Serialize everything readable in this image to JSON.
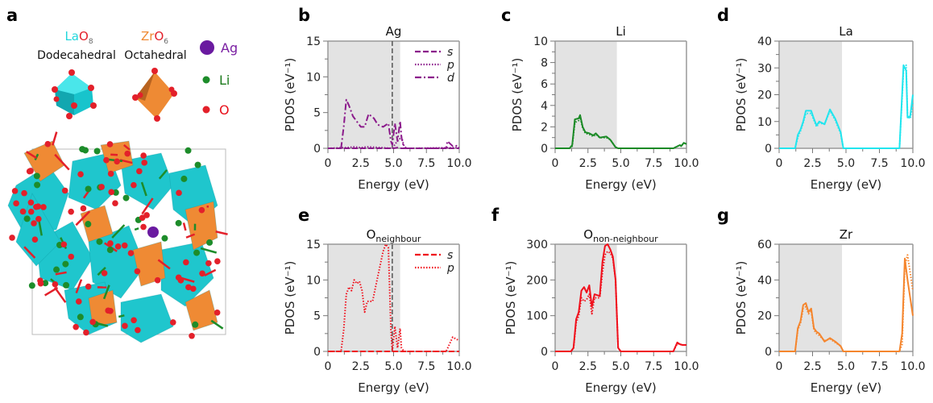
{
  "panel_a": {
    "label": "a",
    "lao8": {
      "element": "La",
      "oxygen": "O",
      "count": "8",
      "shape": "Dodecahedral"
    },
    "zro6": {
      "element": "Zr",
      "oxygen": "O",
      "count": "6",
      "shape": "Octahedral"
    },
    "legend": [
      {
        "label": "Ag",
        "color": "#7a1fa2"
      },
      {
        "label": "Li",
        "color": "#1b7a1b"
      },
      {
        "label": "O",
        "color": "#e8101a"
      }
    ],
    "colors": {
      "la": "#21d7dc",
      "zr": "#ef8a34",
      "li": "#1d8c2a",
      "o": "#e3202a",
      "ag": "#6a1aa0"
    }
  },
  "chart_data": [
    {
      "panel": "b",
      "type": "line",
      "title": "Ag",
      "title_sub": "",
      "xlabel": "Energy (eV)",
      "ylabel": "PDOS (eV⁻¹)",
      "xlim": [
        0,
        10
      ],
      "ylim": [
        0,
        15
      ],
      "xticks": [
        "0",
        "2.5",
        "5.0",
        "7.5",
        "10.0"
      ],
      "yticks": [
        "0",
        "5",
        "10",
        "15"
      ],
      "shade_end": 5.5,
      "marker_line": 4.9,
      "color": "#8b1a8b",
      "legend": [
        {
          "label": "s",
          "style": "dashed"
        },
        {
          "label": "p",
          "style": "dotted"
        },
        {
          "label": "d",
          "style": "dashdot"
        }
      ],
      "series": [
        {
          "name": "s",
          "style": "dashed",
          "x": [
            0,
            5,
            5.3,
            5.6,
            10
          ],
          "y": [
            0,
            0,
            0.1,
            0,
            0
          ]
        },
        {
          "name": "p",
          "style": "dotted",
          "x": [
            0,
            1.5,
            2,
            2.5,
            3,
            4,
            4.9,
            5.2,
            5.6,
            5.8,
            6,
            10
          ],
          "y": [
            0,
            0.1,
            0.2,
            0.1,
            0.2,
            0.1,
            0,
            0.8,
            1.6,
            0.3,
            0,
            0.1
          ]
        },
        {
          "name": "d",
          "style": "dashdot",
          "x": [
            0,
            1,
            1.2,
            1.4,
            1.6,
            1.9,
            2.5,
            2.8,
            3.1,
            3.5,
            3.8,
            4.2,
            4.6,
            4.8,
            4.9,
            5.1,
            5.3,
            5.5,
            5.6,
            5.8,
            6,
            9,
            9.1,
            9.5,
            10
          ],
          "y": [
            0,
            0,
            3,
            6.8,
            6,
            4.5,
            3,
            3,
            4.8,
            4.2,
            3.3,
            3,
            3.5,
            1,
            0.5,
            3.5,
            1,
            3.8,
            1.5,
            0,
            0,
            0,
            1,
            0.3,
            0.4
          ]
        }
      ]
    },
    {
      "panel": "c",
      "type": "line",
      "title": "Li",
      "title_sub": "",
      "xlabel": "Energy (eV)",
      "ylabel": "PDOS (eV⁻¹)",
      "xlim": [
        0,
        10
      ],
      "ylim": [
        0,
        10
      ],
      "xticks": [
        "0",
        "2.5",
        "5.0",
        "7.5",
        "10.0"
      ],
      "yticks": [
        "0",
        "2",
        "4",
        "6",
        "8",
        "10"
      ],
      "shade_end": 4.7,
      "marker_line": null,
      "color": "#1b8a26",
      "legend": [],
      "series": [
        {
          "name": "total",
          "style": "solid",
          "x": [
            0,
            1.1,
            1.3,
            1.5,
            1.8,
            1.9,
            2.1,
            2.3,
            2.6,
            2.9,
            3.1,
            3.4,
            3.9,
            4.2,
            4.6,
            4.8,
            9,
            9.5,
            9.6,
            9.8,
            10
          ],
          "y": [
            0,
            0,
            0.3,
            2.7,
            2.8,
            3.1,
            2,
            1.5,
            1.4,
            1.2,
            1.4,
            1,
            1.1,
            0.8,
            0.1,
            0,
            0,
            0.3,
            0.2,
            0.5,
            0.4
          ]
        },
        {
          "name": "dotted",
          "style": "dotted",
          "x": [
            0,
            1.1,
            1.3,
            1.5,
            1.8,
            1.9,
            2.1,
            2.3,
            2.6,
            2.9,
            3.1,
            3.4,
            3.9,
            4.2,
            4.6,
            4.8,
            9,
            9.5,
            9.6,
            9.8,
            10
          ],
          "y": [
            0,
            0,
            0.2,
            2.4,
            2.6,
            2.9,
            1.9,
            1.4,
            1.3,
            1.1,
            1.3,
            1,
            1,
            0.8,
            0.1,
            0,
            0,
            0.3,
            0.2,
            0.5,
            0.4
          ]
        }
      ]
    },
    {
      "panel": "d",
      "type": "line",
      "title": "La",
      "title_sub": "",
      "xlabel": "Energy (eV)",
      "ylabel": "PDOS (eV⁻¹)",
      "xlim": [
        0,
        10
      ],
      "ylim": [
        0,
        40
      ],
      "xticks": [
        "0",
        "2.5",
        "5.0",
        "7.5",
        "10.0"
      ],
      "yticks": [
        "0",
        "10",
        "20",
        "30",
        "40"
      ],
      "shade_end": 4.7,
      "marker_line": null,
      "color": "#22e5ee",
      "legend": [],
      "series": [
        {
          "name": "total",
          "style": "solid",
          "x": [
            0,
            1.2,
            1.4,
            1.6,
            1.8,
            2,
            2.4,
            2.6,
            2.8,
            3,
            3.4,
            3.8,
            4.2,
            4.6,
            4.8,
            9,
            9.3,
            9.5,
            9.6,
            9.8,
            10
          ],
          "y": [
            0,
            0,
            5,
            7,
            10,
            14,
            14,
            11,
            8.5,
            10,
            9,
            14.5,
            11,
            6,
            0,
            0,
            31,
            29,
            11.5,
            12,
            20
          ]
        },
        {
          "name": "dotted",
          "style": "dotted",
          "x": [
            0,
            1.2,
            1.4,
            1.6,
            1.8,
            2,
            2.4,
            2.6,
            2.8,
            3,
            3.4,
            3.8,
            4.2,
            4.6,
            4.8,
            9,
            9.3,
            9.5,
            9.6,
            9.8,
            10
          ],
          "y": [
            0,
            0,
            4,
            6.5,
            9.5,
            13,
            13,
            10.5,
            8,
            9.5,
            9,
            14,
            10.5,
            5.5,
            0,
            0,
            29,
            31,
            12,
            11,
            17
          ]
        }
      ]
    },
    {
      "panel": "e",
      "type": "line",
      "title": "O",
      "title_sub": "neighbour",
      "xlabel": "Energy (eV)",
      "ylabel": "PDOS (eV⁻¹)",
      "xlim": [
        0,
        10
      ],
      "ylim": [
        0,
        15
      ],
      "xticks": [
        "0",
        "2.5",
        "5.0",
        "7.5",
        "10.0"
      ],
      "yticks": [
        "0",
        "5",
        "10",
        "15"
      ],
      "shade_end": 5.5,
      "marker_line": 4.9,
      "color": "#f0101c",
      "legend": [
        {
          "label": "s",
          "style": "dashed"
        },
        {
          "label": "p",
          "style": "dotted"
        }
      ],
      "series": [
        {
          "name": "s",
          "style": "dashed",
          "x": [
            0,
            10
          ],
          "y": [
            0,
            0
          ]
        },
        {
          "name": "p",
          "style": "dotted",
          "x": [
            0,
            1,
            1.2,
            1.4,
            1.6,
            1.8,
            2,
            2.2,
            2.4,
            2.6,
            2.8,
            3,
            3.4,
            3.8,
            4.2,
            4.4,
            4.6,
            4.8,
            4.9,
            5.1,
            5.3,
            5.5,
            5.6,
            5.8,
            6,
            9,
            9.5,
            10
          ],
          "y": [
            0,
            0,
            3,
            8,
            9,
            8.5,
            10,
            9.5,
            9.8,
            8.5,
            5.5,
            7,
            7,
            10.5,
            14,
            15,
            14.5,
            3,
            0,
            3.5,
            0.5,
            3.2,
            0.5,
            0,
            0,
            0,
            2,
            1.5
          ]
        }
      ]
    },
    {
      "panel": "f",
      "type": "line",
      "title": "O",
      "title_sub": "non-neighbour",
      "xlabel": "Energy (eV)",
      "ylabel": "PDOS (eV⁻¹)",
      "xlim": [
        0,
        10
      ],
      "ylim": [
        0,
        300
      ],
      "xticks": [
        "0",
        "2.5",
        "5.0",
        "7.5",
        "10.0"
      ],
      "yticks": [
        "0",
        "100",
        "200",
        "300"
      ],
      "shade_end": 4.7,
      "marker_line": null,
      "color": "#f0101c",
      "legend": [],
      "series": [
        {
          "name": "total",
          "style": "solid",
          "x": [
            0,
            1.2,
            1.4,
            1.6,
            1.8,
            2,
            2.2,
            2.4,
            2.6,
            2.8,
            3,
            3.4,
            3.6,
            3.8,
            4,
            4.2,
            4.4,
            4.6,
            4.8,
            5,
            9,
            9.3,
            9.5,
            9.7,
            10
          ],
          "y": [
            0,
            0,
            10,
            90,
            110,
            170,
            180,
            165,
            185,
            125,
            160,
            155,
            250,
            295,
            300,
            285,
            265,
            200,
            10,
            0,
            0,
            25,
            20,
            18,
            18
          ]
        },
        {
          "name": "dotted",
          "style": "dotted",
          "x": [
            0,
            1.2,
            1.4,
            1.6,
            1.8,
            2,
            2.2,
            2.4,
            2.6,
            2.8,
            3,
            3.4,
            3.6,
            3.8,
            4,
            4.2,
            4.4,
            4.6,
            4.8,
            5,
            9,
            9.3,
            9.5,
            9.7,
            10
          ],
          "y": [
            0,
            0,
            8,
            80,
            100,
            150,
            140,
            145,
            160,
            105,
            150,
            150,
            220,
            270,
            280,
            275,
            260,
            200,
            10,
            0,
            0,
            22,
            20,
            18,
            18
          ]
        }
      ]
    },
    {
      "panel": "g",
      "type": "line",
      "title": "Zr",
      "title_sub": "",
      "xlabel": "Energy (eV)",
      "ylabel": "PDOS (eV⁻¹)",
      "xlim": [
        0,
        10
      ],
      "ylim": [
        0,
        60
      ],
      "xticks": [
        "0",
        "2.5",
        "5.0",
        "7.5",
        "10.0"
      ],
      "yticks": [
        "0",
        "20",
        "40",
        "60"
      ],
      "shade_end": 4.7,
      "marker_line": null,
      "color": "#f5862e",
      "legend": [],
      "series": [
        {
          "name": "total",
          "style": "solid",
          "x": [
            0,
            1.2,
            1.4,
            1.6,
            1.8,
            2,
            2.2,
            2.4,
            2.6,
            2.8,
            3,
            3.4,
            3.8,
            4.2,
            4.6,
            4.8,
            9,
            9.2,
            9.4,
            9.6,
            10
          ],
          "y": [
            0,
            0,
            13,
            17,
            26,
            27,
            22,
            24,
            13,
            11,
            10,
            5.5,
            7.5,
            5.5,
            3,
            0,
            0,
            10,
            52,
            40,
            20
          ]
        },
        {
          "name": "dotted",
          "style": "dotted",
          "x": [
            0,
            1.2,
            1.4,
            1.6,
            1.8,
            2,
            2.2,
            2.4,
            2.6,
            2.8,
            3,
            3.4,
            3.8,
            4.2,
            4.6,
            4.8,
            9,
            9.2,
            9.4,
            9.6,
            10
          ],
          "y": [
            0,
            0,
            12,
            16,
            24,
            25,
            21,
            23,
            12,
            10,
            9,
            6,
            7,
            5,
            3,
            0,
            0,
            4,
            48,
            54,
            34
          ]
        }
      ]
    }
  ]
}
